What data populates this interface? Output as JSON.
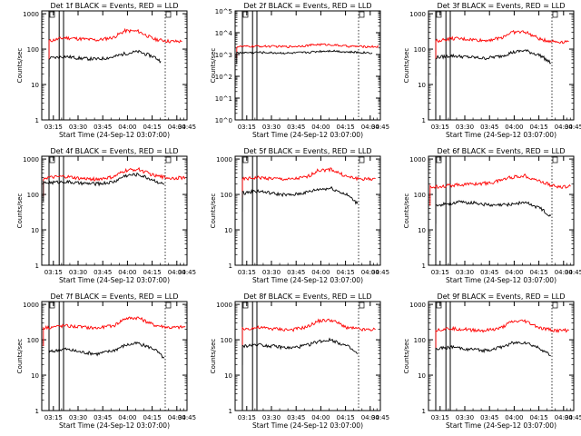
{
  "chart_data": [
    {
      "title": "Det 1f BLACK = Events, RED = LLD",
      "type": "line",
      "xlabel": "Start Time (24-Sep-12 03:07:00)",
      "ylabel": "Counts/sec",
      "x_ticks": [
        "03:15",
        "03:30",
        "03:45",
        "04:00",
        "04:15",
        "04:30",
        "04:45"
      ],
      "y_ticks": [
        "1",
        "10",
        "100",
        "1000"
      ],
      "yscale": "log",
      "ylim": [
        1,
        1200
      ],
      "xlim": [
        11.0,
        100.0
      ],
      "series": [
        {
          "color": "#ff0000",
          "x": [
            15.5,
            25,
            35,
            45,
            55,
            62,
            70,
            80,
            90,
            97
          ],
          "y": [
            170,
            210,
            195,
            180,
            215,
            330,
            320,
            190,
            165,
            165
          ]
        },
        {
          "color": "#000000",
          "x": [
            15.5,
            25,
            35,
            45,
            55,
            62,
            70,
            80,
            84
          ],
          "y": [
            55,
            62,
            55,
            52,
            60,
            75,
            85,
            60,
            45
          ]
        }
      ]
    },
    {
      "title": "Det 2f BLACK = Events, RED = LLD",
      "type": "line",
      "xlabel": "Start Time (24-Sep-12 03:07:00)",
      "ylabel": "Counts/sec",
      "x_ticks": [
        "03:15",
        "03:30",
        "03:45",
        "04:00",
        "04:15",
        "04:30",
        "04:45"
      ],
      "y_ticks": [
        "10^0",
        "10^1",
        "10^2",
        "10^3",
        "10^4",
        "10^5"
      ],
      "yscale": "log",
      "ylim": [
        1,
        100000
      ],
      "xlim": [
        11.0,
        100.0
      ],
      "series": [
        {
          "color": "#ff0000",
          "x": [
            12,
            25,
            35,
            45,
            55,
            62,
            70,
            80,
            90,
            99
          ],
          "y": [
            2300,
            2400,
            2350,
            2300,
            2600,
            2900,
            2800,
            2400,
            2300,
            2300
          ]
        },
        {
          "color": "#000000",
          "x": [
            12,
            25,
            35,
            45,
            55,
            62,
            70,
            80,
            95
          ],
          "y": [
            1200,
            1250,
            1200,
            1150,
            1250,
            1400,
            1500,
            1300,
            1200
          ]
        }
      ]
    },
    {
      "title": "Det 3f BLACK = Events, RED = LLD",
      "type": "line",
      "xlabel": "Start Time (24-Sep-12 03:07:00)",
      "ylabel": "Counts/sec",
      "x_ticks": [
        "03:15",
        "03:30",
        "03:45",
        "04:00",
        "04:15",
        "04:30",
        "04:45"
      ],
      "y_ticks": [
        "1",
        "10",
        "100",
        "1000"
      ],
      "yscale": "log",
      "ylim": [
        1,
        1200
      ],
      "xlim": [
        11.0,
        100.0
      ],
      "series": [
        {
          "color": "#ff0000",
          "x": [
            15.5,
            25,
            35,
            45,
            55,
            62,
            70,
            80,
            90,
            97
          ],
          "y": [
            170,
            200,
            190,
            175,
            205,
            300,
            310,
            185,
            160,
            165
          ]
        },
        {
          "color": "#000000",
          "x": [
            15.5,
            25,
            35,
            45,
            55,
            62,
            70,
            80,
            86
          ],
          "y": [
            58,
            65,
            60,
            55,
            63,
            80,
            92,
            65,
            40
          ]
        }
      ]
    },
    {
      "title": "Det 4f BLACK = Events, RED = LLD",
      "type": "line",
      "xlabel": "Start Time (24-Sep-12 03:07:00)",
      "ylabel": "Counts/sec",
      "x_ticks": [
        "03:15",
        "03:30",
        "03:45",
        "04:00",
        "04:15",
        "04:30",
        "04:45"
      ],
      "y_ticks": [
        "1",
        "10",
        "100",
        "1000"
      ],
      "yscale": "log",
      "ylim": [
        1,
        1200
      ],
      "xlim": [
        11.0,
        100.0
      ],
      "series": [
        {
          "color": "#ff0000",
          "x": [
            12,
            25,
            35,
            45,
            55,
            62,
            70,
            80,
            90,
            99
          ],
          "y": [
            290,
            320,
            280,
            270,
            310,
            470,
            520,
            340,
            290,
            300
          ]
        },
        {
          "color": "#000000",
          "x": [
            12,
            25,
            35,
            45,
            55,
            62,
            70,
            80,
            86
          ],
          "y": [
            210,
            230,
            205,
            200,
            225,
            340,
            370,
            250,
            190
          ]
        }
      ]
    },
    {
      "title": "Det 5f BLACK = Events, RED = LLD",
      "type": "line",
      "xlabel": "Start Time (24-Sep-12 03:07:00)",
      "ylabel": "Counts/sec",
      "x_ticks": [
        "03:15",
        "03:30",
        "03:45",
        "04:00",
        "04:15",
        "04:30",
        "04:45"
      ],
      "y_ticks": [
        "1",
        "10",
        "100",
        "1000"
      ],
      "yscale": "log",
      "ylim": [
        1,
        1200
      ],
      "xlim": [
        11.0,
        100.0
      ],
      "series": [
        {
          "color": "#ff0000",
          "x": [
            15.5,
            25,
            35,
            45,
            55,
            62,
            70,
            80,
            90,
            97
          ],
          "y": [
            270,
            300,
            280,
            265,
            310,
            480,
            510,
            310,
            270,
            280
          ]
        },
        {
          "color": "#000000",
          "x": [
            15.5,
            25,
            35,
            45,
            55,
            62,
            70,
            80,
            86
          ],
          "y": [
            110,
            125,
            105,
            95,
            115,
            140,
            150,
            95,
            55
          ]
        }
      ]
    },
    {
      "title": "Det 6f BLACK = Events, RED = LLD",
      "type": "line",
      "xlabel": "Start Time (24-Sep-12 03:07:00)",
      "ylabel": "Counts/sec",
      "x_ticks": [
        "03:15",
        "03:30",
        "03:45",
        "04:00",
        "04:15",
        "04:30",
        "04:45"
      ],
      "y_ticks": [
        "1",
        "10",
        "100",
        "1000"
      ],
      "yscale": "log",
      "ylim": [
        1,
        1200
      ],
      "xlim": [
        11.0,
        100.0
      ],
      "series": [
        {
          "color": "#ff0000",
          "x": [
            12,
            20,
            30,
            40,
            50,
            60,
            70,
            80,
            90,
            98
          ],
          "y": [
            160,
            175,
            190,
            200,
            215,
            300,
            340,
            230,
            160,
            170
          ]
        },
        {
          "color": "#000000",
          "x": [
            15.5,
            22,
            30,
            40,
            50,
            60,
            70,
            80,
            86
          ],
          "y": [
            50,
            55,
            60,
            58,
            48,
            52,
            60,
            40,
            25
          ]
        }
      ]
    },
    {
      "title": "Det 7f BLACK = Events, RED = LLD",
      "type": "line",
      "xlabel": "Start Time (24-Sep-12 03:07:00)",
      "ylabel": "Counts/sec",
      "x_ticks": [
        "03:15",
        "03:30",
        "03:45",
        "04:00",
        "04:15",
        "04:30",
        "04:45"
      ],
      "y_ticks": [
        "1",
        "10",
        "100",
        "1000"
      ],
      "yscale": "log",
      "ylim": [
        1,
        1200
      ],
      "xlim": [
        11.0,
        100.0
      ],
      "series": [
        {
          "color": "#ff0000",
          "x": [
            12,
            25,
            35,
            45,
            55,
            62,
            70,
            80,
            90,
            99
          ],
          "y": [
            220,
            250,
            230,
            215,
            250,
            400,
            420,
            260,
            220,
            230
          ]
        },
        {
          "color": "#000000",
          "x": [
            15.5,
            25,
            35,
            45,
            55,
            62,
            70,
            80,
            86
          ],
          "y": [
            45,
            55,
            45,
            40,
            50,
            70,
            80,
            55,
            30
          ]
        }
      ]
    },
    {
      "title": "Det 8f BLACK = Events, RED = LLD",
      "type": "line",
      "xlabel": "Start Time (24-Sep-12 03:07:00)",
      "ylabel": "Counts/sec",
      "x_ticks": [
        "03:15",
        "03:30",
        "03:45",
        "04:00",
        "04:15",
        "04:30",
        "04:45"
      ],
      "y_ticks": [
        "1",
        "10",
        "100",
        "1000"
      ],
      "yscale": "log",
      "ylim": [
        1,
        1200
      ],
      "xlim": [
        11.0,
        100.0
      ],
      "series": [
        {
          "color": "#ff0000",
          "x": [
            15.5,
            25,
            35,
            45,
            55,
            62,
            70,
            80,
            90,
            97
          ],
          "y": [
            200,
            220,
            205,
            190,
            230,
            340,
            360,
            220,
            190,
            195
          ]
        },
        {
          "color": "#000000",
          "x": [
            15.5,
            25,
            35,
            45,
            55,
            62,
            70,
            80,
            86
          ],
          "y": [
            65,
            75,
            65,
            58,
            70,
            90,
            100,
            65,
            40
          ]
        }
      ]
    },
    {
      "title": "Det 9f BLACK = Events, RED = LLD",
      "type": "line",
      "xlabel": "Start Time (24-Sep-12 03:07:00)",
      "ylabel": "Counts/sec",
      "x_ticks": [
        "03:15",
        "03:30",
        "03:45",
        "04:00",
        "04:15",
        "04:30",
        "04:45"
      ],
      "y_ticks": [
        "1",
        "10",
        "100",
        "1000"
      ],
      "yscale": "log",
      "ylim": [
        1,
        1200
      ],
      "xlim": [
        11.0,
        100.0
      ],
      "series": [
        {
          "color": "#ff0000",
          "x": [
            15.5,
            25,
            35,
            45,
            55,
            62,
            70,
            80,
            90,
            97
          ],
          "y": [
            190,
            210,
            195,
            180,
            210,
            320,
            340,
            210,
            180,
            185
          ]
        },
        {
          "color": "#000000",
          "x": [
            15.5,
            25,
            35,
            45,
            55,
            62,
            70,
            80,
            86
          ],
          "y": [
            55,
            62,
            55,
            50,
            60,
            80,
            85,
            55,
            35
          ]
        }
      ]
    }
  ]
}
